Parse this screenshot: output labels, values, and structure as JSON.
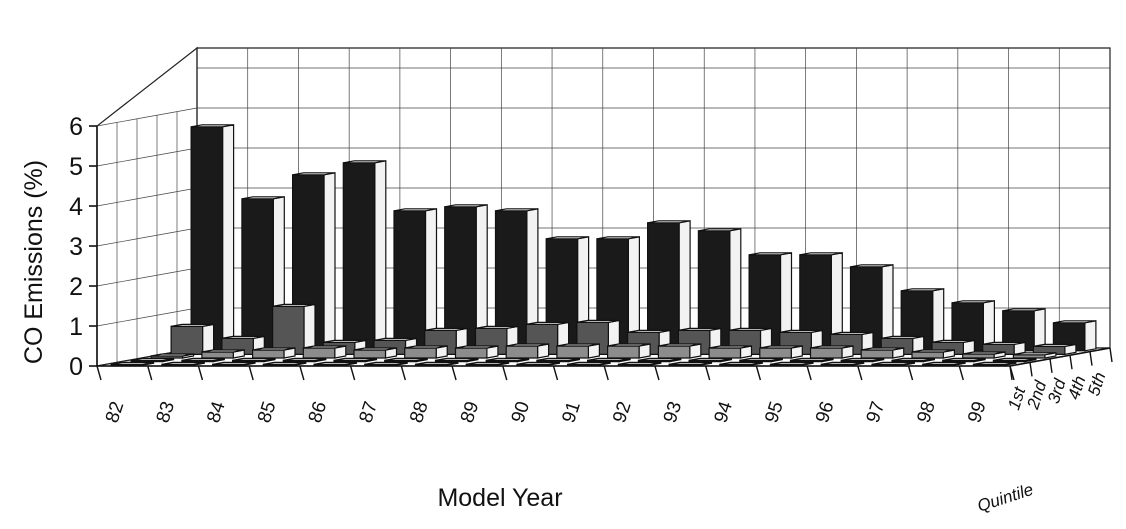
{
  "chart_data": {
    "type": "bar3d",
    "ylabel": "CO Emissions (%)",
    "xlabel": "Model Year",
    "zlabel": "Quintile",
    "ylim": [
      0,
      6
    ],
    "yticks": [
      "0",
      "1",
      "2",
      "3",
      "4",
      "5",
      "6"
    ],
    "categories": [
      "82",
      "83",
      "84",
      "85",
      "86",
      "87",
      "88",
      "89",
      "90",
      "91",
      "92",
      "93",
      "94",
      "95",
      "96",
      "97",
      "98",
      "99"
    ],
    "series": [
      {
        "name": "1st",
        "color": "#e6e6e6",
        "values": [
          0.02,
          0.02,
          0.02,
          0.02,
          0.02,
          0.02,
          0.02,
          0.02,
          0.02,
          0.02,
          0.02,
          0.02,
          0.02,
          0.02,
          0.02,
          0.02,
          0.02,
          0.02
        ]
      },
      {
        "name": "2nd",
        "color": "#e6e6e6",
        "values": [
          0.03,
          0.03,
          0.03,
          0.03,
          0.03,
          0.03,
          0.03,
          0.03,
          0.03,
          0.03,
          0.03,
          0.03,
          0.03,
          0.03,
          0.03,
          0.03,
          0.03,
          0.03
        ]
      },
      {
        "name": "3rd",
        "color": "#8c8c8c",
        "values": [
          0.05,
          0.15,
          0.2,
          0.25,
          0.2,
          0.25,
          0.25,
          0.3,
          0.3,
          0.3,
          0.3,
          0.25,
          0.25,
          0.25,
          0.2,
          0.15,
          0.1,
          0.08
        ]
      },
      {
        "name": "4th",
        "color": "#555555",
        "values": [
          0.7,
          0.4,
          1.2,
          0.3,
          0.35,
          0.6,
          0.65,
          0.75,
          0.8,
          0.55,
          0.6,
          0.6,
          0.55,
          0.5,
          0.4,
          0.3,
          0.25,
          0.2
        ]
      },
      {
        "name": "5th",
        "color": "#1a1a1a",
        "values": [
          5.6,
          3.8,
          4.4,
          4.7,
          3.5,
          3.6,
          3.5,
          2.8,
          2.8,
          3.2,
          3.0,
          2.4,
          2.4,
          2.1,
          1.5,
          1.2,
          1.0,
          0.7
        ]
      }
    ]
  }
}
